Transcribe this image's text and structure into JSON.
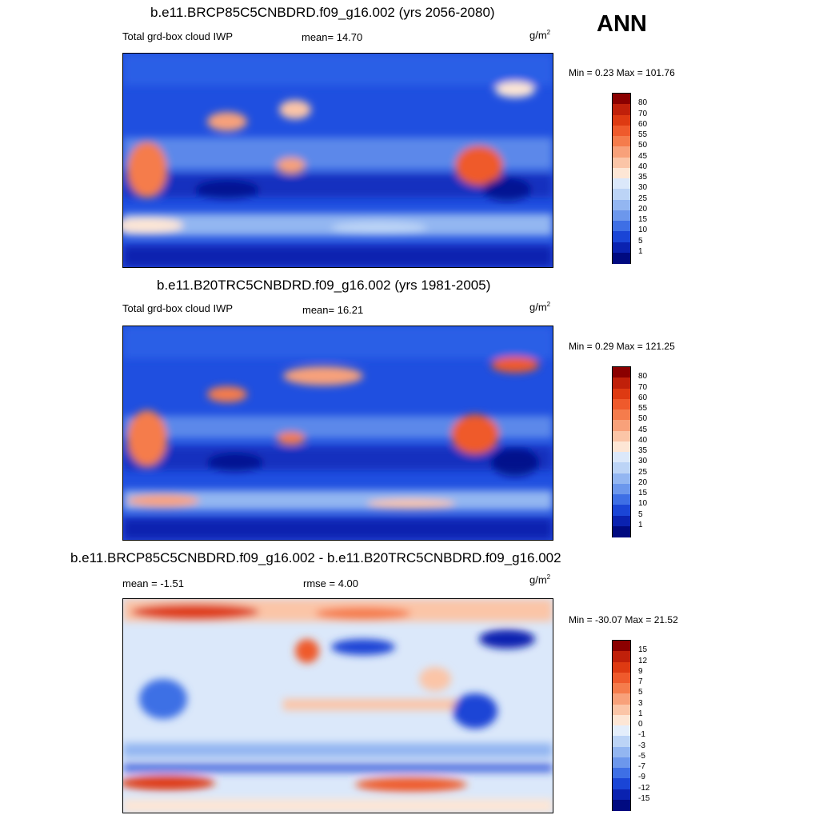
{
  "season": "ANN",
  "panels": [
    {
      "title": "b.e11.BRCP85C5CNBDRD.f09_g16.002 (yrs 2056-2080)",
      "left_label": "Total grd-box cloud IWP",
      "center_label": "mean=  14.70",
      "units_base": "g/m",
      "units_exp": "2",
      "minmax": "Min =   0.23 Max = 101.76",
      "colorbar_ticks": [
        "80",
        "70",
        "60",
        "55",
        "50",
        "45",
        "40",
        "35",
        "30",
        "25",
        "20",
        "15",
        "10",
        "5",
        "1"
      ],
      "colorbar_colors": [
        "#8b0000",
        "#c0200a",
        "#de3a12",
        "#ef5a2c",
        "#f57c4c",
        "#f8a17a",
        "#fbc5a7",
        "#fde6d5",
        "#dbe8fa",
        "#bcd4f6",
        "#93b6f1",
        "#6c97ec",
        "#3e6fe5",
        "#1a45d6",
        "#0a22b0",
        "#000a80"
      ]
    },
    {
      "title": "b.e11.B20TRC5CNBDRD.f09_g16.002 (yrs 1981-2005)",
      "left_label": "Total grd-box cloud IWP",
      "center_label": "mean=  16.21",
      "units_base": "g/m",
      "units_exp": "2",
      "minmax": "Min =   0.29 Max = 121.25",
      "colorbar_ticks": [
        "80",
        "70",
        "60",
        "55",
        "50",
        "45",
        "40",
        "35",
        "30",
        "25",
        "20",
        "15",
        "10",
        "5",
        "1"
      ],
      "colorbar_colors": [
        "#8b0000",
        "#c0200a",
        "#de3a12",
        "#ef5a2c",
        "#f57c4c",
        "#f8a17a",
        "#fbc5a7",
        "#fde6d5",
        "#dbe8fa",
        "#bcd4f6",
        "#93b6f1",
        "#6c97ec",
        "#3e6fe5",
        "#1a45d6",
        "#0a22b0",
        "#000a80"
      ]
    },
    {
      "title": "b.e11.BRCP85C5CNBDRD.f09_g16.002 - b.e11.B20TRC5CNBDRD.f09_g16.002",
      "left_label": "mean =  -1.51",
      "center_label": "rmse =   4.00",
      "units_base": "g/m",
      "units_exp": "2",
      "minmax": "Min = -30.07 Max =  21.52",
      "colorbar_ticks": [
        "15",
        "12",
        "9",
        "7",
        "5",
        "3",
        "1",
        "0",
        "-1",
        "-3",
        "-5",
        "-7",
        "-9",
        "-12",
        "-15"
      ],
      "colorbar_colors": [
        "#8b0000",
        "#c0200a",
        "#de3a12",
        "#ef5a2c",
        "#f57c4c",
        "#f8a17a",
        "#fbc5a7",
        "#fde6d5",
        "#e4eefb",
        "#bcd4f6",
        "#93b6f1",
        "#6c97ec",
        "#3e6fe5",
        "#1a45d6",
        "#0a22b0",
        "#000a80"
      ]
    }
  ],
  "chart_data": [
    {
      "type": "heatmap",
      "title": "b.e11.BRCP85C5CNBDRD.f09_g16.002 (yrs 2056-2080)",
      "variable": "Total grd-box cloud IWP",
      "units": "g/m2",
      "mean": 14.7,
      "min": 0.23,
      "max": 101.76,
      "levels": [
        1,
        5,
        10,
        15,
        20,
        25,
        30,
        35,
        40,
        45,
        50,
        55,
        60,
        70,
        80
      ]
    },
    {
      "type": "heatmap",
      "title": "b.e11.B20TRC5CNBDRD.f09_g16.002 (yrs 1981-2005)",
      "variable": "Total grd-box cloud IWP",
      "units": "g/m2",
      "mean": 16.21,
      "min": 0.29,
      "max": 121.25,
      "levels": [
        1,
        5,
        10,
        15,
        20,
        25,
        30,
        35,
        40,
        45,
        50,
        55,
        60,
        70,
        80
      ]
    },
    {
      "type": "heatmap",
      "title": "b.e11.BRCP85C5CNBDRD.f09_g16.002 - b.e11.B20TRC5CNBDRD.f09_g16.002",
      "units": "g/m2",
      "mean": -1.51,
      "rmse": 4.0,
      "min": -30.07,
      "max": 21.52,
      "levels": [
        -15,
        -12,
        -9,
        -7,
        -5,
        -3,
        -1,
        0,
        1,
        3,
        5,
        7,
        9,
        12,
        15
      ]
    }
  ]
}
